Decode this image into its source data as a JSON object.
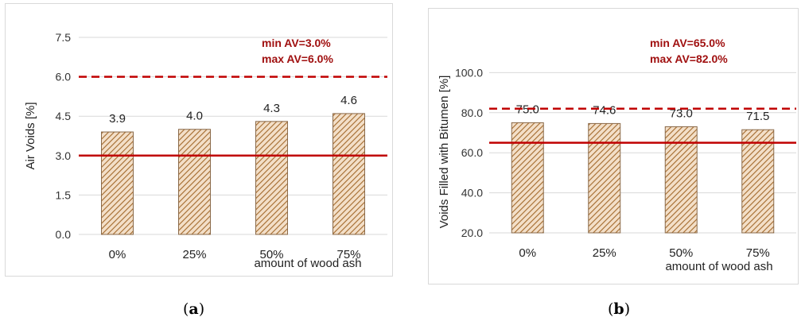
{
  "chart_data": [
    {
      "type": "bar",
      "panel_label": "a",
      "categories": [
        "0%",
        "25%",
        "50%",
        "75%"
      ],
      "values": [
        3.9,
        4.0,
        4.3,
        4.6
      ],
      "value_labels": [
        "3.9",
        "4.0",
        "4.3",
        "4.6"
      ],
      "ylabel": "Air Voids   [%]",
      "xlabel": "amount of wood ash",
      "ylim": [
        0.0,
        7.5
      ],
      "yticks": [
        0.0,
        1.5,
        3.0,
        4.5,
        6.0,
        7.5
      ],
      "ytick_labels": [
        "0.0",
        "1.5",
        "3.0",
        "4.5",
        "6.0",
        "7.5"
      ],
      "grid": true,
      "reference_lines": [
        {
          "value": 3.0,
          "style": "solid"
        },
        {
          "value": 6.0,
          "style": "dashed"
        }
      ],
      "annotations": [
        "min AV=3.0%",
        "max AV=6.0%"
      ],
      "colors": {
        "bar_fill": "#f3dfc8",
        "hatch": "#a36a2c",
        "bar_edge": "#8a6a4a",
        "ref_line": "#c00000",
        "annotation": "#a01010",
        "grid": "#d9d9d9"
      }
    },
    {
      "type": "bar",
      "panel_label": "b",
      "categories": [
        "0%",
        "25%",
        "50%",
        "75%"
      ],
      "values": [
        75.0,
        74.6,
        73.0,
        71.5
      ],
      "value_labels": [
        "75.0",
        "74.6",
        "73.0",
        "71.5"
      ],
      "ylabel": "Voids  Filled  with   Bitumen   [%]",
      "xlabel": "amount of wood ash",
      "ylim": [
        20.0,
        120.0
      ],
      "yticks": [
        20.0,
        40.0,
        60.0,
        80.0,
        100.0
      ],
      "ytick_labels": [
        "20.0",
        "40.0",
        "60.0",
        "80.0",
        "100.0"
      ],
      "grid": true,
      "reference_lines": [
        {
          "value": 65.0,
          "style": "solid"
        },
        {
          "value": 82.0,
          "style": "dashed"
        }
      ],
      "annotations": [
        "min AV=65.0%",
        "max AV=82.0%"
      ],
      "colors": {
        "bar_fill": "#f3dfc8",
        "hatch": "#a36a2c",
        "bar_edge": "#8a6a4a",
        "ref_line": "#c00000",
        "annotation": "#a01010",
        "grid": "#d9d9d9"
      }
    }
  ],
  "captions": {
    "a": "a",
    "b": "b"
  }
}
